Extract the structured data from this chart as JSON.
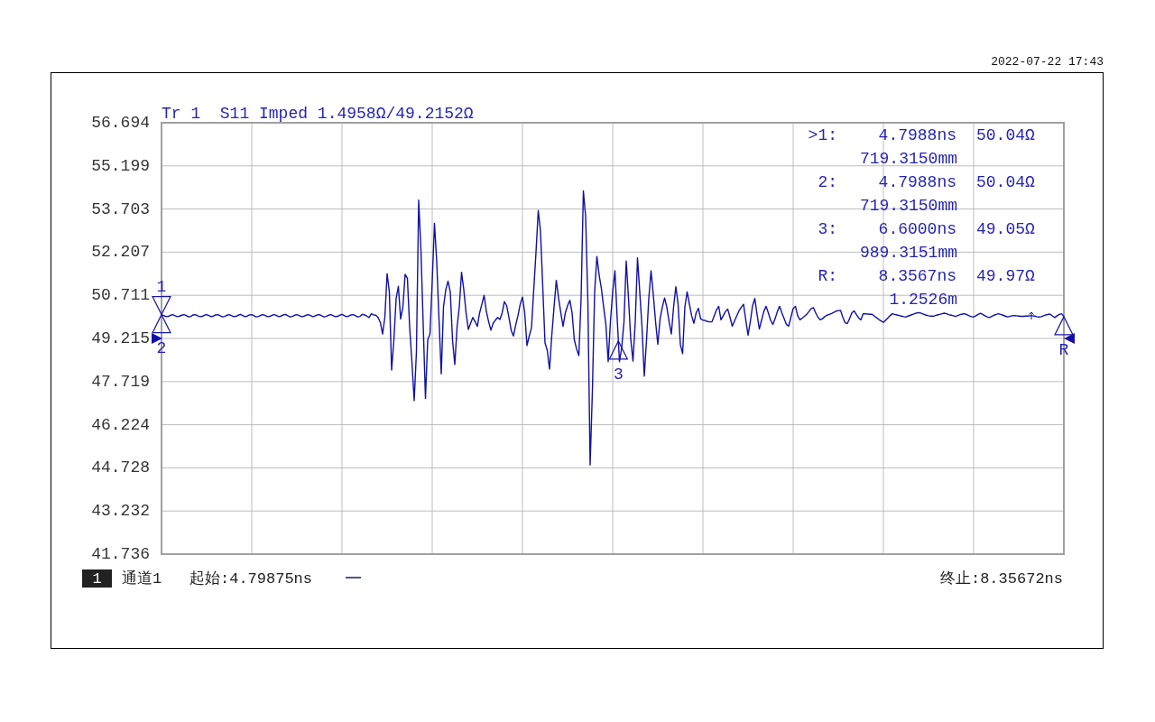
{
  "chart_data": {
    "type": "line",
    "title": "Tr 1  S11 Imped 1.4958Ω/49.2152Ω",
    "categories": [
      null,
      null,
      null,
      null,
      null,
      null,
      null,
      null,
      null,
      null,
      null,
      null,
      null,
      null,
      null,
      null,
      null,
      null,
      null,
      null,
      null,
      null,
      null,
      null,
      null,
      null,
      null,
      null,
      null,
      null,
      null,
      null,
      null,
      null,
      null,
      null,
      null,
      null,
      null,
      null,
      null,
      null,
      null,
      null,
      null,
      null,
      null,
      null,
      null,
      null,
      null,
      null,
      null,
      null,
      null,
      null,
      null,
      null,
      null,
      null,
      null,
      null,
      null,
      null,
      null,
      null,
      null,
      null,
      null,
      null,
      null,
      null,
      null,
      null,
      null,
      null,
      null,
      null,
      null,
      null,
      null,
      null,
      null,
      null,
      null,
      null,
      null,
      null,
      null,
      null,
      null,
      null,
      null,
      null,
      null,
      null,
      null,
      null,
      null,
      null,
      null,
      null,
      null,
      null,
      null,
      null,
      null,
      null,
      null,
      null,
      null,
      null,
      null,
      null,
      null,
      null,
      null,
      null,
      null,
      null,
      null,
      null,
      null,
      null,
      null,
      null,
      null,
      null,
      null,
      null,
      null,
      null,
      null,
      null,
      null,
      null,
      null,
      null,
      null,
      null,
      null,
      null,
      null,
      null,
      null,
      null,
      null,
      null,
      null,
      null,
      null,
      null,
      null,
      null,
      null,
      null,
      null,
      null,
      null,
      null,
      null,
      null,
      null,
      null,
      null,
      null,
      null,
      null,
      null,
      null,
      null,
      null,
      null,
      null,
      null,
      null,
      null,
      null,
      null,
      null,
      null,
      null,
      null,
      null,
      null,
      null,
      null,
      null,
      null,
      null,
      null,
      null,
      null,
      null,
      null,
      null,
      null,
      null,
      null,
      null,
      null,
      null,
      null,
      null,
      null,
      null,
      null,
      null,
      null,
      null,
      null,
      null,
      null,
      null,
      null,
      null,
      null,
      null,
      null,
      null,
      null,
      null,
      null,
      null,
      null,
      null,
      null,
      null,
      null,
      null,
      null,
      null,
      null,
      null,
      null,
      null,
      null,
      null,
      null,
      null,
      null,
      null,
      null,
      null,
      null,
      null,
      null,
      null,
      null,
      null,
      null,
      null,
      null,
      null,
      null,
      null,
      null,
      null,
      null,
      null,
      null,
      null,
      null,
      null,
      null,
      null,
      null,
      null,
      null,
      null,
      null,
      null,
      null,
      null,
      null,
      null,
      null,
      null,
      null,
      null,
      null,
      null,
      null,
      null,
      null,
      null,
      null,
      null,
      null,
      null,
      null,
      null,
      null,
      null,
      null,
      null,
      null,
      null,
      null,
      null,
      null,
      null,
      null,
      null,
      null,
      null,
      null,
      null,
      null,
      null,
      null,
      null,
      null,
      null,
      null,
      null,
      null,
      null,
      null,
      null,
      null,
      null,
      null,
      null,
      null,
      null,
      null,
      null,
      null,
      null,
      null,
      null,
      null,
      null,
      null,
      null,
      null,
      null,
      null,
      null,
      null,
      null,
      null,
      null,
      null,
      null,
      null,
      null,
      null,
      null,
      null,
      null,
      null,
      null,
      null,
      null,
      null,
      null,
      null,
      null,
      null,
      null,
      null,
      null,
      null,
      null,
      null,
      null,
      null,
      null,
      null,
      null,
      null,
      null,
      null,
      null,
      null,
      null,
      null,
      null,
      null,
      null,
      null,
      null,
      null,
      null,
      null,
      null,
      null,
      null,
      null,
      null,
      null,
      null,
      null,
      null,
      null,
      null,
      null,
      null,
      null
    ],
    "ylim": [
      41.736,
      56.694
    ],
    "yticks": [
      41.736,
      43.232,
      44.728,
      46.224,
      47.719,
      49.215,
      50.711,
      52.207,
      53.703,
      55.199,
      56.694
    ],
    "grid": true,
    "tick_labels": "y",
    "series": [
      {
        "color": "#1010a8",
        "values": [
          50.04,
          50.01,
          49.97,
          49.98,
          50.02,
          50.04,
          50.0,
          49.97,
          49.99,
          50.02,
          50.04,
          50.01,
          49.96,
          49.98,
          50.03,
          50.04,
          50.0,
          49.97,
          49.98,
          50.02,
          50.04,
          50.01,
          49.97,
          49.99,
          50.03,
          50.04,
          50.0,
          49.96,
          49.98,
          50.02,
          50.04,
          50.01,
          49.97,
          49.98,
          50.02,
          50.05,
          50.01,
          49.97,
          49.99,
          50.03,
          50.04,
          50.0,
          49.96,
          49.98,
          50.02,
          50.04,
          50.01,
          49.97,
          49.98,
          50.02,
          50.04,
          50.01,
          49.97,
          49.99,
          50.03,
          50.05,
          50.0,
          49.96,
          49.98,
          50.02,
          50.04,
          50.01,
          49.97,
          49.98,
          50.02,
          50.04,
          50.01,
          49.97,
          49.99,
          50.03,
          50.04,
          50.0,
          49.96,
          49.98,
          50.02,
          50.04,
          50.01,
          49.97,
          49.98,
          50.02,
          50.05,
          50.01,
          49.97,
          49.99,
          50.03,
          50.04,
          50.0,
          49.96,
          49.98,
          50.05,
          50.03,
          49.99,
          49.94,
          50.07,
          50.03,
          50.02,
          49.94,
          49.77,
          49.37,
          49.95,
          51.46,
          50.83,
          48.12,
          49.16,
          50.6,
          51.02,
          49.89,
          50.31,
          51.44,
          51.3,
          49.6,
          48.4,
          47.06,
          48.75,
          54.01,
          52.29,
          49.7,
          47.13,
          49.16,
          49.37,
          51.2,
          53.21,
          51.88,
          49.9,
          47.99,
          50.31,
          50.9,
          51.2,
          50.83,
          49.16,
          48.31,
          49.6,
          50.31,
          51.51,
          50.9,
          50.1,
          49.53,
          49.74,
          49.94,
          49.8,
          49.63,
          50.1,
          50.4,
          50.71,
          50.15,
          49.8,
          49.5,
          49.74,
          49.85,
          49.94,
          49.87,
          50.1,
          50.49,
          50.35,
          49.95,
          49.5,
          49.3,
          49.68,
          50.0,
          50.4,
          50.65,
          50.1,
          48.97,
          49.3,
          49.58,
          50.9,
          52.2,
          53.65,
          52.92,
          51.0,
          49.06,
          48.8,
          48.15,
          49.32,
          50.3,
          51.23,
          50.62,
          50.1,
          49.63,
          50.1,
          50.35,
          50.54,
          50.1,
          49.16,
          48.85,
          48.62,
          50.62,
          54.33,
          53.44,
          50.5,
          44.83,
          47.39,
          50.83,
          52.06,
          51.41,
          50.94,
          50.3,
          49.68,
          48.41,
          49.8,
          50.83,
          51.56,
          49.9,
          48.41,
          48.9,
          49.79,
          51.9,
          50.62,
          49.2,
          48.43,
          49.79,
          52.01,
          50.83,
          49.6,
          47.91,
          49.16,
          50.6,
          51.56,
          50.73,
          49.8,
          49.01,
          49.89,
          50.3,
          50.62,
          50.3,
          49.8,
          49.37,
          50.31,
          51.01,
          50.4,
          49.0,
          48.69,
          50.31,
          50.83,
          50.41,
          50.0,
          49.74,
          50.1,
          50.26,
          49.89,
          49.85,
          49.84,
          49.8,
          49.79,
          49.79,
          50.0,
          50.2,
          50.33,
          49.86,
          50.0,
          50.15,
          50.23,
          49.95,
          49.64,
          49.82,
          50.0,
          50.17,
          50.3,
          50.4,
          49.85,
          49.33,
          49.8,
          50.35,
          50.6,
          50.05,
          49.54,
          49.85,
          50.15,
          50.33,
          50.1,
          49.85,
          49.7,
          49.9,
          50.15,
          50.33,
          50.1,
          49.9,
          49.7,
          49.64,
          49.95,
          50.25,
          50.33,
          50.0,
          49.86,
          49.92,
          49.98,
          50.05,
          50.15,
          50.25,
          50.28,
          50.1,
          49.95,
          49.86,
          49.9,
          49.97,
          50.02,
          50.05,
          50.08,
          50.12,
          50.16,
          50.18,
          50.19,
          49.95,
          49.76,
          49.73,
          49.9,
          50.1,
          50.17,
          50.05,
          49.93,
          49.86,
          50.07,
          50.07,
          50.06,
          50.05,
          50.05,
          49.99,
          49.93,
          49.87,
          49.82,
          49.77,
          49.85,
          49.93,
          50.01,
          50.07,
          50.05,
          50.03,
          50.01,
          49.99,
          49.97,
          49.96,
          49.99,
          50.02,
          50.05,
          50.08,
          50.1,
          50.11,
          50.08,
          50.05,
          50.02,
          50.0,
          49.99,
          49.98,
          50.01,
          50.03,
          50.05,
          50.07,
          50.09,
          50.07,
          50.04,
          50.02,
          50.0,
          49.98,
          50.01,
          50.04,
          50.06,
          50.07,
          50.04,
          50.0,
          49.97,
          49.96,
          50.0,
          50.05,
          50.09,
          50.05,
          50.0,
          49.96,
          49.94,
          49.98,
          50.02,
          50.05,
          50.07,
          50.05,
          50.02,
          49.99,
          49.96,
          49.98,
          50.0,
          50.01,
          50.0,
          49.99,
          49.98,
          49.98,
          49.99,
          49.99,
          50.0,
          50.0,
          49.99,
          49.97,
          49.96,
          49.97,
          50.0,
          50.03,
          50.05,
          50.05,
          49.99,
          49.94,
          50.0,
          50.05,
          50.07,
          49.97
        ]
      }
    ],
    "annotations": [
      "1",
      "2",
      "3",
      "R",
      ">1:",
      "4.7988ns",
      "50.04Ω",
      "719.3150mm",
      "2:",
      "4.7988ns",
      "50.04Ω",
      "719.3150mm",
      "3:",
      "6.6000ns",
      "49.05Ω",
      "989.3151mm",
      "R:",
      "8.3567ns",
      "49.97Ω",
      "1.2526m",
      "1",
      "通道1",
      "起始:4.79875ns",
      "终止:8.35672ns",
      "2022-07-22 17:43"
    ]
  }
}
